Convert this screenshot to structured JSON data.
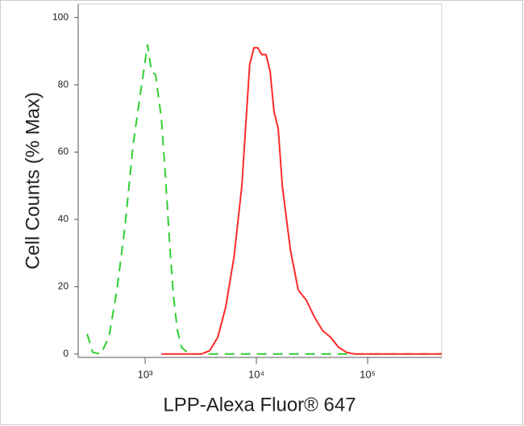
{
  "chart_data": {
    "type": "line",
    "xlabel": "LPP-Alexa Fluor® 647",
    "ylabel": "Cell Counts (% Max)",
    "xscale": "log",
    "xlim": [
      250,
      464000
    ],
    "ylim": [
      -1,
      104
    ],
    "xticks": [
      {
        "value": 1000,
        "label": "10³"
      },
      {
        "value": 10000,
        "label": "10⁴"
      },
      {
        "value": 100000,
        "label": "10⁵"
      }
    ],
    "yticks": [
      0,
      20,
      40,
      60,
      80,
      100
    ],
    "series": [
      {
        "color": "#32cd32",
        "style": "dashed",
        "x": [
          301,
          338,
          399,
          472,
          557,
          659,
          778,
          920,
          1050,
          1140,
          1240,
          1400,
          1520,
          1650,
          1800,
          1950,
          2120,
          2500,
          464000
        ],
        "values": [
          6,
          0.5,
          0,
          5,
          19,
          38,
          62,
          79,
          92,
          84,
          83,
          70,
          53,
          34,
          17,
          7,
          2,
          0,
          0
        ]
      },
      {
        "color": "#ff2a2a",
        "style": "solid",
        "x": [
          1400,
          3200,
          3800,
          4500,
          5300,
          6300,
          7400,
          8100,
          8700,
          9500,
          10300,
          11200,
          12200,
          13300,
          14400,
          15700,
          17100,
          20200,
          23800,
          28100,
          33200,
          39300,
          46400,
          54800,
          64800,
          76600,
          464000
        ],
        "values": [
          0,
          0,
          1,
          5,
          14,
          29,
          50,
          70,
          86,
          91,
          91,
          89,
          89,
          84,
          72,
          67,
          50,
          31,
          19,
          16,
          11,
          7,
          5,
          2,
          0.5,
          0,
          0
        ]
      }
    ]
  }
}
